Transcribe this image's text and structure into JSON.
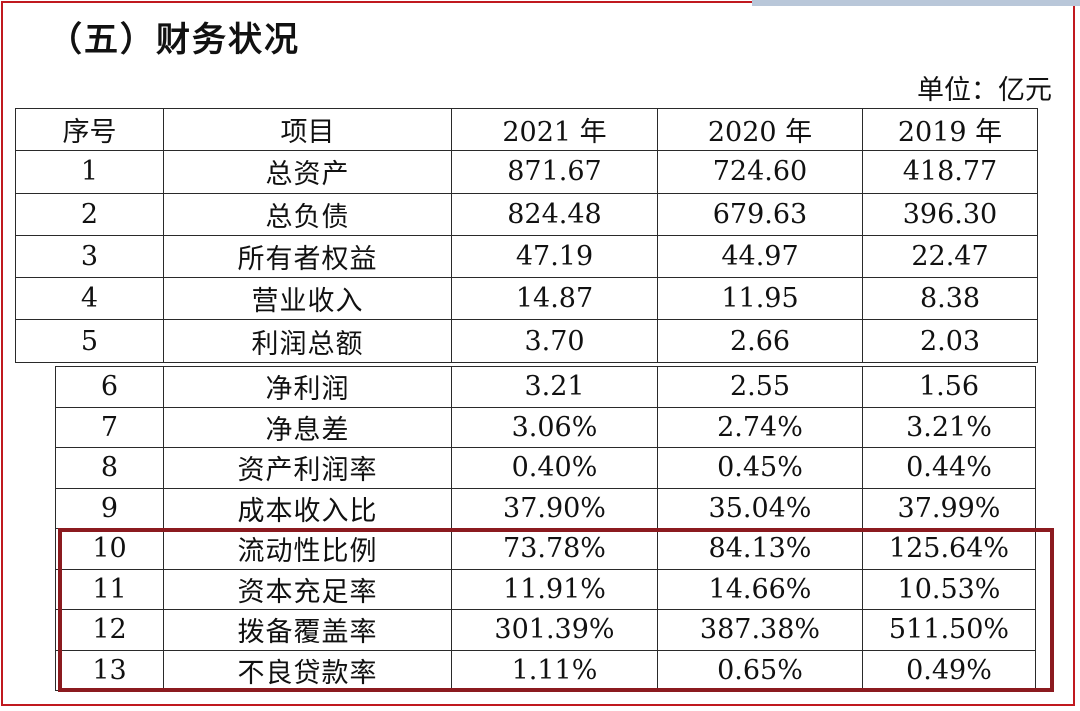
{
  "section_title": "（五）财务状况",
  "unit": "单位：亿元",
  "table": {
    "headers": [
      "序号",
      "项目",
      "2021 年",
      "2020 年",
      "2019 年"
    ],
    "rows": [
      {
        "no": "1",
        "item": "总资产",
        "y2021": "871.67",
        "y2020": "724.60",
        "y2019": "418.77"
      },
      {
        "no": "2",
        "item": "总负债",
        "y2021": "824.48",
        "y2020": "679.63",
        "y2019": "396.30"
      },
      {
        "no": "3",
        "item": "所有者权益",
        "y2021": "47.19",
        "y2020": "44.97",
        "y2019": "22.47"
      },
      {
        "no": "4",
        "item": "营业收入",
        "y2021": "14.87",
        "y2020": "11.95",
        "y2019": "8.38"
      },
      {
        "no": "5",
        "item": "利润总额",
        "y2021": "3.70",
        "y2020": "2.66",
        "y2019": "2.03"
      },
      {
        "no": "6",
        "item": "净利润",
        "y2021": "3.21",
        "y2020": "2.55",
        "y2019": "1.56"
      },
      {
        "no": "7",
        "item": "净息差",
        "y2021": "3.06%",
        "y2020": "2.74%",
        "y2019": "3.21%"
      },
      {
        "no": "8",
        "item": "资产利润率",
        "y2021": "0.40%",
        "y2020": "0.45%",
        "y2019": "0.44%"
      },
      {
        "no": "9",
        "item": "成本收入比",
        "y2021": "37.90%",
        "y2020": "35.04%",
        "y2019": "37.99%"
      },
      {
        "no": "10",
        "item": "流动性比例",
        "y2021": "73.78%",
        "y2020": "84.13%",
        "y2019": "125.64%"
      },
      {
        "no": "11",
        "item": "资本充足率",
        "y2021": "11.91%",
        "y2020": "14.66%",
        "y2019": "10.53%"
      },
      {
        "no": "12",
        "item": "拨备覆盖率",
        "y2021": "301.39%",
        "y2020": "387.38%",
        "y2019": "511.50%"
      },
      {
        "no": "13",
        "item": "不良贷款率",
        "y2021": "1.11%",
        "y2020": "0.65%",
        "y2019": "0.49%"
      }
    ]
  },
  "colors": {
    "frame": "#c0191f",
    "highlight": "#8b1a1f"
  }
}
